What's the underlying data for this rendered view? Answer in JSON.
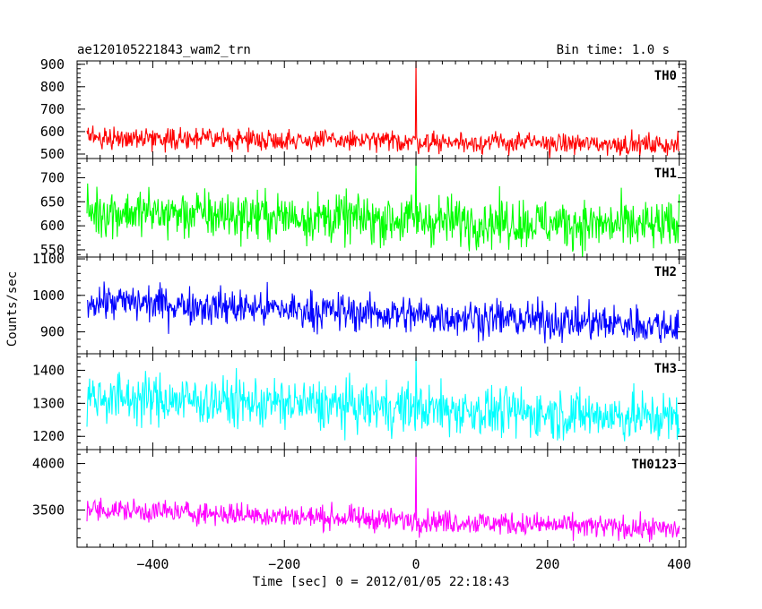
{
  "title_left": "ae120105221843_wam2_trn",
  "title_right": "Bin time: 1.0 s",
  "ylabel": "Counts/sec",
  "xlabel": "Time [sec] 0 = 2012/01/05 22:18:43",
  "chart_data": {
    "type": "line",
    "x_range": [
      -515,
      410
    ],
    "x_ticks": [
      -400,
      -200,
      0,
      200,
      400
    ],
    "x_tick_labels": [
      "−400",
      "−200",
      "0",
      "200",
      "400"
    ],
    "x_data": [
      -500,
      400
    ],
    "bin_time_s": 1.0,
    "panels": [
      {
        "name": "TH0",
        "color": "#ff0000",
        "ylim": [
          480,
          915
        ],
        "yticks": [
          500,
          600,
          700,
          800,
          900
        ],
        "ytick_labels": [
          "500",
          "600",
          "700",
          "800",
          "900"
        ],
        "level_start": 575,
        "level_end": 540,
        "scatter": 23,
        "spike": {
          "x": 0,
          "peak": 915
        }
      },
      {
        "name": "TH1",
        "color": "#00ff00",
        "ylim": [
          535,
          740
        ],
        "yticks": [
          550,
          600,
          650,
          700
        ],
        "ytick_labels": [
          "550",
          "600",
          "650",
          "700"
        ],
        "level_start": 630,
        "level_end": 598,
        "scatter": 26,
        "spike": {
          "x": 0,
          "peak": 740
        }
      },
      {
        "name": "TH2",
        "color": "#0000ff",
        "ylim": [
          840,
          1105
        ],
        "yticks": [
          900,
          1000,
          1100
        ],
        "ytick_labels": [
          "900",
          "1000",
          "1100"
        ],
        "level_start": 985,
        "level_end": 915,
        "scatter": 26,
        "spike": null
      },
      {
        "name": "TH3",
        "color": "#00ffff",
        "ylim": [
          1160,
          1450
        ],
        "yticks": [
          1200,
          1300,
          1400
        ],
        "ytick_labels": [
          "1200",
          "1300",
          "1400"
        ],
        "level_start": 1320,
        "level_end": 1255,
        "scatter": 38,
        "spike": {
          "x": 0,
          "peak": 1440
        }
      },
      {
        "name": "TH0123",
        "color": "#ff00ff",
        "ylim": [
          3100,
          4150
        ],
        "yticks": [
          3500,
          4000
        ],
        "ytick_labels": [
          "3500",
          "4000"
        ],
        "level_start": 3510,
        "level_end": 3290,
        "scatter": 62,
        "spike": {
          "x": 0,
          "peak": 4150
        }
      }
    ]
  }
}
